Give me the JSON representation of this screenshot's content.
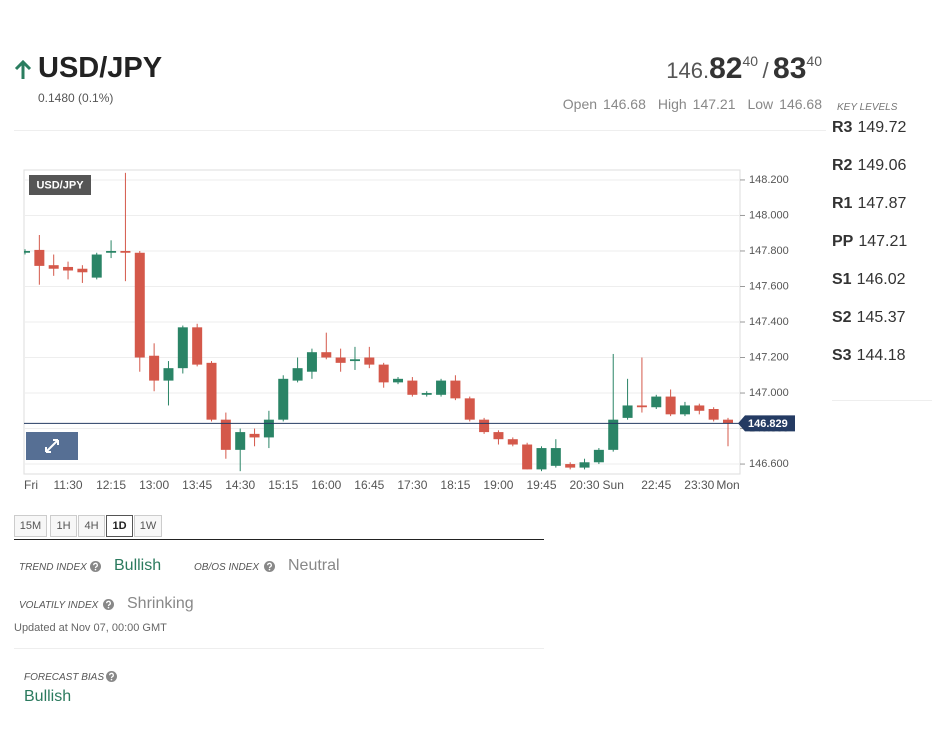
{
  "header": {
    "symbol": "USD/JPY",
    "change": "0.1480 (0.1%)"
  },
  "quote": {
    "bid_big": "146.",
    "bid_pips": "82",
    "bid_fraction": "40",
    "separator": "/",
    "ask_pips": "83",
    "ask_fraction": "40",
    "stats": [
      {
        "label": "Open",
        "value": "146.68"
      },
      {
        "label": "High",
        "value": "147.21"
      },
      {
        "label": "Low",
        "value": "146.68"
      }
    ]
  },
  "key_levels": {
    "title": "KEY LEVELS",
    "levels": [
      {
        "name": "R3",
        "value": "149.72"
      },
      {
        "name": "R2",
        "value": "149.06"
      },
      {
        "name": "R1",
        "value": "147.87"
      },
      {
        "name": "PP",
        "value": "147.21"
      },
      {
        "name": "S1",
        "value": "146.02"
      },
      {
        "name": "S2",
        "value": "145.37"
      },
      {
        "name": "S3",
        "value": "144.18"
      }
    ]
  },
  "chart_data": {
    "type": "candlestick",
    "title": "USD/JPY",
    "categories": [
      "Fri",
      null,
      null,
      "11:30",
      null,
      null,
      "12:15",
      null,
      null,
      "13:00",
      null,
      null,
      "13:45",
      null,
      null,
      "14:30",
      null,
      null,
      "15:15",
      null,
      null,
      "16:00",
      null,
      null,
      "16:45",
      null,
      null,
      "17:30",
      null,
      null,
      "18:15",
      null,
      null,
      "19:00",
      null,
      null,
      "19:45",
      null,
      null,
      "20:30",
      null,
      "Sun",
      null,
      null,
      "22:45",
      null,
      null,
      "23:30",
      null,
      "Mon"
    ],
    "open": [
      147.79,
      147.806,
      147.72,
      147.71,
      147.7,
      147.65,
      147.79,
      147.8,
      147.79,
      147.21,
      147.07,
      147.14,
      147.37,
      147.17,
      146.85,
      146.68,
      146.77,
      146.75,
      146.85,
      147.07,
      147.12,
      147.23,
      147.2,
      147.18,
      147.2,
      147.16,
      147.06,
      147.07,
      146.99,
      146.99,
      147.07,
      146.97,
      146.85,
      146.78,
      146.74,
      146.71,
      146.57,
      146.59,
      146.6,
      146.58,
      146.61,
      146.68,
      146.86,
      146.93,
      146.92,
      146.98,
      146.88,
      146.93,
      146.91,
      146.85
    ],
    "high": [
      147.81,
      147.89,
      147.78,
      147.74,
      147.72,
      147.79,
      147.86,
      148.24,
      147.8,
      147.28,
      147.18,
      147.38,
      147.39,
      147.18,
      146.89,
      146.8,
      146.8,
      146.9,
      147.1,
      147.2,
      147.25,
      147.34,
      147.25,
      147.26,
      147.26,
      147.17,
      147.09,
      147.09,
      147.01,
      147.08,
      147.1,
      146.98,
      146.86,
      146.79,
      146.75,
      146.72,
      146.7,
      146.74,
      146.61,
      146.63,
      146.69,
      147.22,
      147.08,
      147.2,
      146.99,
      147.02,
      146.95,
      146.94,
      146.92,
      146.86
    ],
    "low": [
      147.78,
      147.61,
      147.66,
      147.64,
      147.62,
      147.64,
      147.76,
      147.63,
      147.12,
      147.01,
      146.93,
      147.11,
      147.15,
      146.84,
      146.63,
      146.56,
      146.7,
      146.69,
      146.84,
      147.06,
      147.08,
      147.19,
      147.12,
      147.13,
      147.14,
      147.03,
      147.05,
      146.98,
      146.98,
      146.98,
      146.96,
      146.84,
      146.77,
      146.71,
      146.7,
      146.57,
      146.56,
      146.58,
      146.57,
      146.57,
      146.6,
      146.67,
      146.85,
      146.89,
      146.91,
      146.87,
      146.87,
      146.88,
      146.84,
      146.7
    ],
    "close": [
      147.8,
      147.716,
      147.7,
      147.69,
      147.68,
      147.78,
      147.8,
      147.79,
      147.2,
      147.07,
      147.14,
      147.37,
      147.16,
      146.85,
      146.68,
      146.78,
      146.75,
      146.85,
      147.08,
      147.14,
      147.23,
      147.2,
      147.17,
      147.19,
      147.16,
      147.06,
      147.08,
      146.99,
      147.0,
      147.07,
      146.97,
      146.85,
      146.78,
      146.74,
      146.71,
      146.57,
      146.69,
      146.69,
      146.58,
      146.61,
      146.68,
      146.85,
      146.93,
      146.92,
      146.98,
      146.88,
      146.93,
      146.9,
      146.85,
      146.83
    ],
    "up_color": "#2a8466",
    "down_color": "#d4584a",
    "last": 146.829,
    "last_color": "#243b63",
    "ylim": [
      146.544,
      148.256
    ],
    "yticks": [
      {
        "value": 146.6,
        "label": "146.600"
      },
      {
        "value": 146.8,
        "label": "146.800"
      },
      {
        "value": 147.0,
        "label": "147.000"
      },
      {
        "value": 147.2,
        "label": "147.200"
      },
      {
        "value": 147.4,
        "label": "147.400"
      },
      {
        "value": 147.6,
        "label": "147.600"
      },
      {
        "value": 147.8,
        "label": "147.800"
      },
      {
        "value": 148.0,
        "label": "148.000"
      },
      {
        "value": 148.2,
        "label": "148.200"
      }
    ],
    "grid": true
  },
  "timeframes": {
    "buttons": [
      "15M",
      "1H",
      "4H",
      "1D",
      "1W"
    ],
    "active": "1D"
  },
  "indicators": [
    {
      "name": "TREND INDEX",
      "value": "Bullish"
    },
    {
      "name": "OB/OS INDEX",
      "value": "Neutral"
    },
    {
      "name": "VOLATILY INDEX",
      "value": "Shrinking"
    }
  ],
  "updated": "Updated at Nov 07, 00:00 GMT",
  "forecast": {
    "name": "FORECAST BIAS",
    "value": "Bullish"
  }
}
